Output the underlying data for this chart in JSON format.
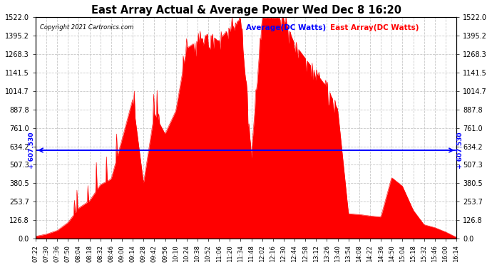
{
  "title": "East Array Actual & Average Power Wed Dec 8 16:20",
  "copyright": "Copyright 2021 Cartronics.com",
  "legend_avg": "Average(DC Watts)",
  "legend_east": "East Array(DC Watts)",
  "ymin": 0.0,
  "ymax": 1522.0,
  "ytick_values": [
    0.0,
    126.8,
    253.7,
    380.5,
    507.3,
    634.2,
    761.0,
    887.8,
    1014.7,
    1141.5,
    1268.3,
    1395.2,
    1522.0
  ],
  "ytick_labels": [
    "0.0",
    "126.8",
    "253.7",
    "380.5",
    "507.3",
    "634.2",
    "761.0",
    "887.8",
    "1014.7",
    "1141.5",
    "1268.3",
    "1395.2",
    "1522.0"
  ],
  "avg_value": 607.53,
  "avg_label": "607.530",
  "background_color": "#ffffff",
  "fill_color": "#ff0000",
  "avg_line_color": "#0000ff",
  "title_color": "#000000",
  "copyright_color": "#000000",
  "legend_avg_color": "#0000ff",
  "legend_east_color": "#ff0000",
  "grid_color": "#c8c8c8",
  "xtick_labels": [
    "07:22",
    "07:30",
    "07:36",
    "07:50",
    "08:04",
    "08:18",
    "08:32",
    "08:46",
    "09:00",
    "09:14",
    "09:28",
    "09:42",
    "09:56",
    "10:10",
    "10:24",
    "10:38",
    "10:52",
    "11:06",
    "11:20",
    "11:34",
    "11:48",
    "12:02",
    "12:16",
    "12:30",
    "12:44",
    "12:58",
    "13:12",
    "13:26",
    "13:40",
    "13:54",
    "14:08",
    "14:22",
    "14:36",
    "14:50",
    "15:04",
    "15:18",
    "15:32",
    "15:46",
    "16:00",
    "16:14"
  ]
}
